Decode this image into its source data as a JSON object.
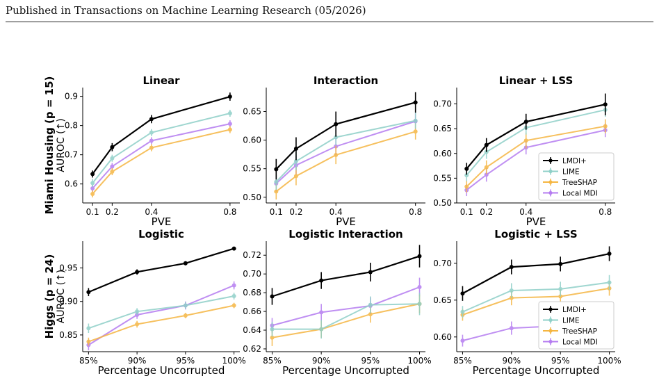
{
  "header": {
    "text": "Published in Transactions on Machine Learning Research (05/2026)"
  },
  "rows": [
    {
      "label": "Miami Housing (p = 15)",
      "ylabel": "AUROC (↑)"
    },
    {
      "label": "Higgs (p = 24)",
      "ylabel": "AUROC (↑)"
    }
  ],
  "legend": [
    "LMDI+",
    "LIME",
    "TreeSHAP",
    "Local MDI"
  ],
  "colors": {
    "LMDI+": "#000000",
    "LIME": "#8fd0c8",
    "TreeSHAP": "#f5b642",
    "Local MDI": "#b57cf0"
  },
  "chart_data": [
    {
      "type": "line",
      "title": "Linear",
      "xlabel": "PVE",
      "ylabel": "AUROC (↑)",
      "x": [
        0.1,
        0.2,
        0.4,
        0.8
      ],
      "xticks": [
        "0.1",
        "0.2",
        "0.4",
        "0.8"
      ],
      "xlim": [
        0.05,
        0.85
      ],
      "ylim": [
        0.535,
        0.93
      ],
      "yticks": [
        0.6,
        0.7,
        0.8,
        0.9
      ],
      "yticklabels": [
        "0.6",
        "0.7",
        "0.8",
        "0.9"
      ],
      "legend": false,
      "series": [
        {
          "name": "LMDI+",
          "values": [
            0.634,
            0.726,
            0.822,
            0.899
          ],
          "err": [
            0.012,
            0.014,
            0.014,
            0.014
          ]
        },
        {
          "name": "LIME",
          "values": [
            0.603,
            0.688,
            0.776,
            0.842
          ],
          "err": [
            0.014,
            0.012,
            0.012,
            0.012
          ]
        },
        {
          "name": "TreeSHAP",
          "values": [
            0.566,
            0.642,
            0.724,
            0.786
          ],
          "err": [
            0.012,
            0.012,
            0.012,
            0.012
          ]
        },
        {
          "name": "Local MDI",
          "values": [
            0.585,
            0.66,
            0.748,
            0.806
          ],
          "err": [
            0.012,
            0.012,
            0.012,
            0.012
          ]
        }
      ]
    },
    {
      "type": "line",
      "title": "Interaction",
      "xlabel": "PVE",
      "ylabel": "",
      "x": [
        0.1,
        0.2,
        0.4,
        0.8
      ],
      "xticks": [
        "0.1",
        "0.2",
        "0.4",
        "0.8"
      ],
      "xlim": [
        0.05,
        0.85
      ],
      "ylim": [
        0.49,
        0.692
      ],
      "yticks": [
        0.5,
        0.55,
        0.6,
        0.65
      ],
      "yticklabels": [
        "0.50",
        "0.55",
        "0.60",
        "0.65"
      ],
      "legend": false,
      "series": [
        {
          "name": "LMDI+",
          "values": [
            0.549,
            0.585,
            0.628,
            0.666
          ],
          "err": [
            0.018,
            0.02,
            0.022,
            0.018
          ]
        },
        {
          "name": "LIME",
          "values": [
            0.527,
            0.563,
            0.605,
            0.634
          ],
          "err": [
            0.014,
            0.016,
            0.014,
            0.014
          ]
        },
        {
          "name": "TreeSHAP",
          "values": [
            0.51,
            0.537,
            0.574,
            0.615
          ],
          "err": [
            0.014,
            0.016,
            0.016,
            0.014
          ]
        },
        {
          "name": "Local MDI",
          "values": [
            0.524,
            0.556,
            0.589,
            0.633
          ],
          "err": [
            0.014,
            0.016,
            0.016,
            0.014
          ]
        }
      ]
    },
    {
      "type": "line",
      "title": "Linear + LSS",
      "xlabel": "PVE",
      "ylabel": "",
      "x": [
        0.1,
        0.2,
        0.4,
        0.8
      ],
      "xticks": [
        "0.1",
        "0.2",
        "0.4",
        "0.8"
      ],
      "xlim": [
        0.05,
        0.85
      ],
      "ylim": [
        0.5,
        0.733
      ],
      "yticks": [
        0.5,
        0.55,
        0.6,
        0.65,
        0.7
      ],
      "yticklabels": [
        "0.50",
        "0.55",
        "0.60",
        "0.65",
        "0.70"
      ],
      "legend": true,
      "series": [
        {
          "name": "LMDI+",
          "values": [
            0.569,
            0.617,
            0.664,
            0.699
          ],
          "err": [
            0.012,
            0.014,
            0.016,
            0.022
          ]
        },
        {
          "name": "LIME",
          "values": [
            0.556,
            0.603,
            0.652,
            0.688
          ],
          "err": [
            0.012,
            0.014,
            0.014,
            0.014
          ]
        },
        {
          "name": "TreeSHAP",
          "values": [
            0.533,
            0.572,
            0.626,
            0.655
          ],
          "err": [
            0.012,
            0.014,
            0.016,
            0.014
          ]
        },
        {
          "name": "Local MDI",
          "values": [
            0.526,
            0.557,
            0.612,
            0.647
          ],
          "err": [
            0.012,
            0.014,
            0.014,
            0.014
          ]
        }
      ]
    },
    {
      "type": "line",
      "title": "Logistic",
      "xlabel": "Percentage Uncorrupted",
      "ylabel": "AUROC (↑)",
      "x": [
        85,
        90,
        95,
        100
      ],
      "xticks": [
        "85%",
        "90%",
        "95%",
        "100%"
      ],
      "xlim": [
        84.4,
        100.6
      ],
      "ylim": [
        0.825,
        0.99
      ],
      "yticks": [
        0.85,
        0.9,
        0.95
      ],
      "yticklabels": [
        "0.85",
        "0.90",
        "0.95"
      ],
      "legend": false,
      "series": [
        {
          "name": "LMDI+",
          "values": [
            0.914,
            0.944,
            0.957,
            0.979
          ],
          "err": [
            0.006,
            0.004,
            0.003,
            0.002
          ]
        },
        {
          "name": "LIME",
          "values": [
            0.86,
            0.885,
            0.894,
            0.908
          ],
          "err": [
            0.007,
            0.005,
            0.005,
            0.005
          ]
        },
        {
          "name": "TreeSHAP",
          "values": [
            0.84,
            0.866,
            0.879,
            0.894
          ],
          "err": [
            0.006,
            0.005,
            0.004,
            0.004
          ]
        },
        {
          "name": "Local MDI",
          "values": [
            0.835,
            0.88,
            0.894,
            0.924
          ],
          "err": [
            0.008,
            0.006,
            0.006,
            0.006
          ]
        }
      ]
    },
    {
      "type": "line",
      "title": "Logistic Interaction",
      "xlabel": "Percentage Uncorrupted",
      "ylabel": "",
      "x": [
        85,
        90,
        95,
        100
      ],
      "xticks": [
        "85%",
        "90%",
        "95%",
        "100%"
      ],
      "xlim": [
        84.4,
        100.6
      ],
      "ylim": [
        0.617,
        0.735
      ],
      "yticks": [
        0.62,
        0.64,
        0.66,
        0.68,
        0.7,
        0.72
      ],
      "yticklabels": [
        "0.62",
        "0.64",
        "0.66",
        "0.68",
        "0.70",
        "0.72"
      ],
      "legend": false,
      "series": [
        {
          "name": "LMDI+",
          "values": [
            0.676,
            0.693,
            0.702,
            0.719
          ],
          "err": [
            0.009,
            0.009,
            0.01,
            0.012
          ]
        },
        {
          "name": "LIME",
          "values": [
            0.641,
            0.641,
            0.667,
            0.668
          ],
          "err": [
            0.008,
            0.01,
            0.009,
            0.012
          ]
        },
        {
          "name": "TreeSHAP",
          "values": [
            0.632,
            0.641,
            0.657,
            0.668
          ],
          "err": [
            0.009,
            0.009,
            0.009,
            0.01
          ]
        },
        {
          "name": "Local MDI",
          "values": [
            0.645,
            0.659,
            0.666,
            0.686
          ],
          "err": [
            0.008,
            0.009,
            0.009,
            0.01
          ]
        }
      ]
    },
    {
      "type": "line",
      "title": "Logistic + LSS",
      "xlabel": "Percentage Uncorrupted",
      "ylabel": "",
      "x": [
        85,
        90,
        95,
        100
      ],
      "xticks": [
        "85%",
        "90%",
        "95%",
        "100%"
      ],
      "xlim": [
        84.4,
        100.6
      ],
      "ylim": [
        0.58,
        0.73
      ],
      "yticks": [
        0.6,
        0.65,
        0.7
      ],
      "yticklabels": [
        "0.60",
        "0.65",
        "0.70"
      ],
      "legend": true,
      "series": [
        {
          "name": "LMDI+",
          "values": [
            0.659,
            0.695,
            0.699,
            0.713
          ],
          "err": [
            0.01,
            0.01,
            0.01,
            0.01
          ]
        },
        {
          "name": "LIME",
          "values": [
            0.634,
            0.663,
            0.665,
            0.674
          ],
          "err": [
            0.008,
            0.01,
            0.01,
            0.01
          ]
        },
        {
          "name": "TreeSHAP",
          "values": [
            0.63,
            0.653,
            0.655,
            0.666
          ],
          "err": [
            0.008,
            0.01,
            0.01,
            0.01
          ]
        },
        {
          "name": "Local MDI",
          "values": [
            0.595,
            0.612,
            0.615,
            0.627
          ],
          "err": [
            0.008,
            0.009,
            0.009,
            0.009
          ]
        }
      ]
    }
  ]
}
